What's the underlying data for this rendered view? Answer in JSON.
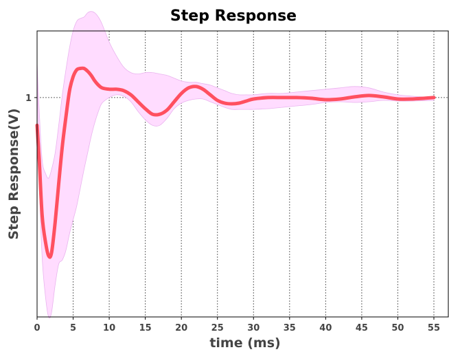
{
  "chart_data": {
    "type": "line",
    "title": "Step Response",
    "xlabel": "time (ms)",
    "ylabel": "Step Response(V)",
    "xlim": [
      0,
      57
    ],
    "ylim": [
      -0.58,
      1.48
    ],
    "x_ticks": [
      0,
      5,
      10,
      15,
      20,
      25,
      30,
      35,
      40,
      45,
      50,
      55
    ],
    "y_ticks": [
      1
    ],
    "grid": true,
    "colors": {
      "line": "#ff5060",
      "band_fill": "#ffdcff",
      "band_edge": "#e9b3ee",
      "grid": "#666666"
    },
    "series": [
      {
        "x": [
          0,
          0.3,
          0.7,
          1.2,
          1.6,
          2.0,
          2.5,
          3.0,
          3.5,
          4.0,
          4.5,
          5.0,
          5.5,
          6.0,
          6.5,
          7.0,
          7.5,
          8.0,
          8.5,
          9.0,
          10,
          11,
          12,
          13,
          14,
          15,
          16,
          17,
          18,
          19,
          20,
          21,
          22,
          23,
          24,
          25,
          26,
          27,
          28,
          29,
          30,
          32,
          34,
          36,
          38,
          40,
          42,
          44,
          46,
          48,
          50,
          52,
          55
        ],
        "y": [
          0.8,
          0.55,
          0.15,
          -0.05,
          -0.14,
          -0.12,
          0.1,
          0.38,
          0.65,
          0.86,
          1.05,
          1.15,
          1.2,
          1.21,
          1.21,
          1.19,
          1.16,
          1.12,
          1.09,
          1.07,
          1.06,
          1.06,
          1.05,
          1.02,
          0.97,
          0.92,
          0.88,
          0.88,
          0.91,
          0.97,
          1.03,
          1.07,
          1.08,
          1.06,
          1.02,
          0.98,
          0.96,
          0.955,
          0.96,
          0.975,
          0.99,
          1.0,
          1.0,
          1.0,
          0.995,
          0.985,
          0.99,
          1.005,
          1.015,
          1.005,
          0.99,
          0.99,
          1.0
        ],
        "lower": [
          1.2,
          0.4,
          -0.15,
          -0.45,
          -0.58,
          -0.55,
          -0.35,
          -0.2,
          -0.17,
          -0.1,
          0.02,
          0.12,
          0.22,
          0.35,
          0.48,
          0.6,
          0.72,
          0.82,
          0.9,
          0.96,
          1.0,
          1.02,
          1.01,
          0.97,
          0.9,
          0.84,
          0.8,
          0.8,
          0.85,
          0.92,
          0.96,
          0.98,
          0.99,
          0.99,
          0.97,
          0.95,
          0.93,
          0.915,
          0.915,
          0.915,
          0.915,
          0.92,
          0.93,
          0.94,
          0.95,
          0.965,
          0.97,
          0.965,
          0.97,
          0.98,
          0.975,
          0.975,
          0.98
        ],
        "upper": [
          1.25,
          0.9,
          0.55,
          0.45,
          0.42,
          0.48,
          0.6,
          0.8,
          1.02,
          1.2,
          1.36,
          1.48,
          1.55,
          1.57,
          1.58,
          1.61,
          1.62,
          1.61,
          1.58,
          1.53,
          1.4,
          1.3,
          1.22,
          1.18,
          1.17,
          1.18,
          1.18,
          1.17,
          1.16,
          1.14,
          1.12,
          1.11,
          1.11,
          1.1,
          1.09,
          1.07,
          1.05,
          1.03,
          1.02,
          1.02,
          1.02,
          1.03,
          1.03,
          1.04,
          1.05,
          1.06,
          1.07,
          1.08,
          1.07,
          1.04,
          1.02,
          1.01,
          1.0
        ]
      }
    ]
  }
}
